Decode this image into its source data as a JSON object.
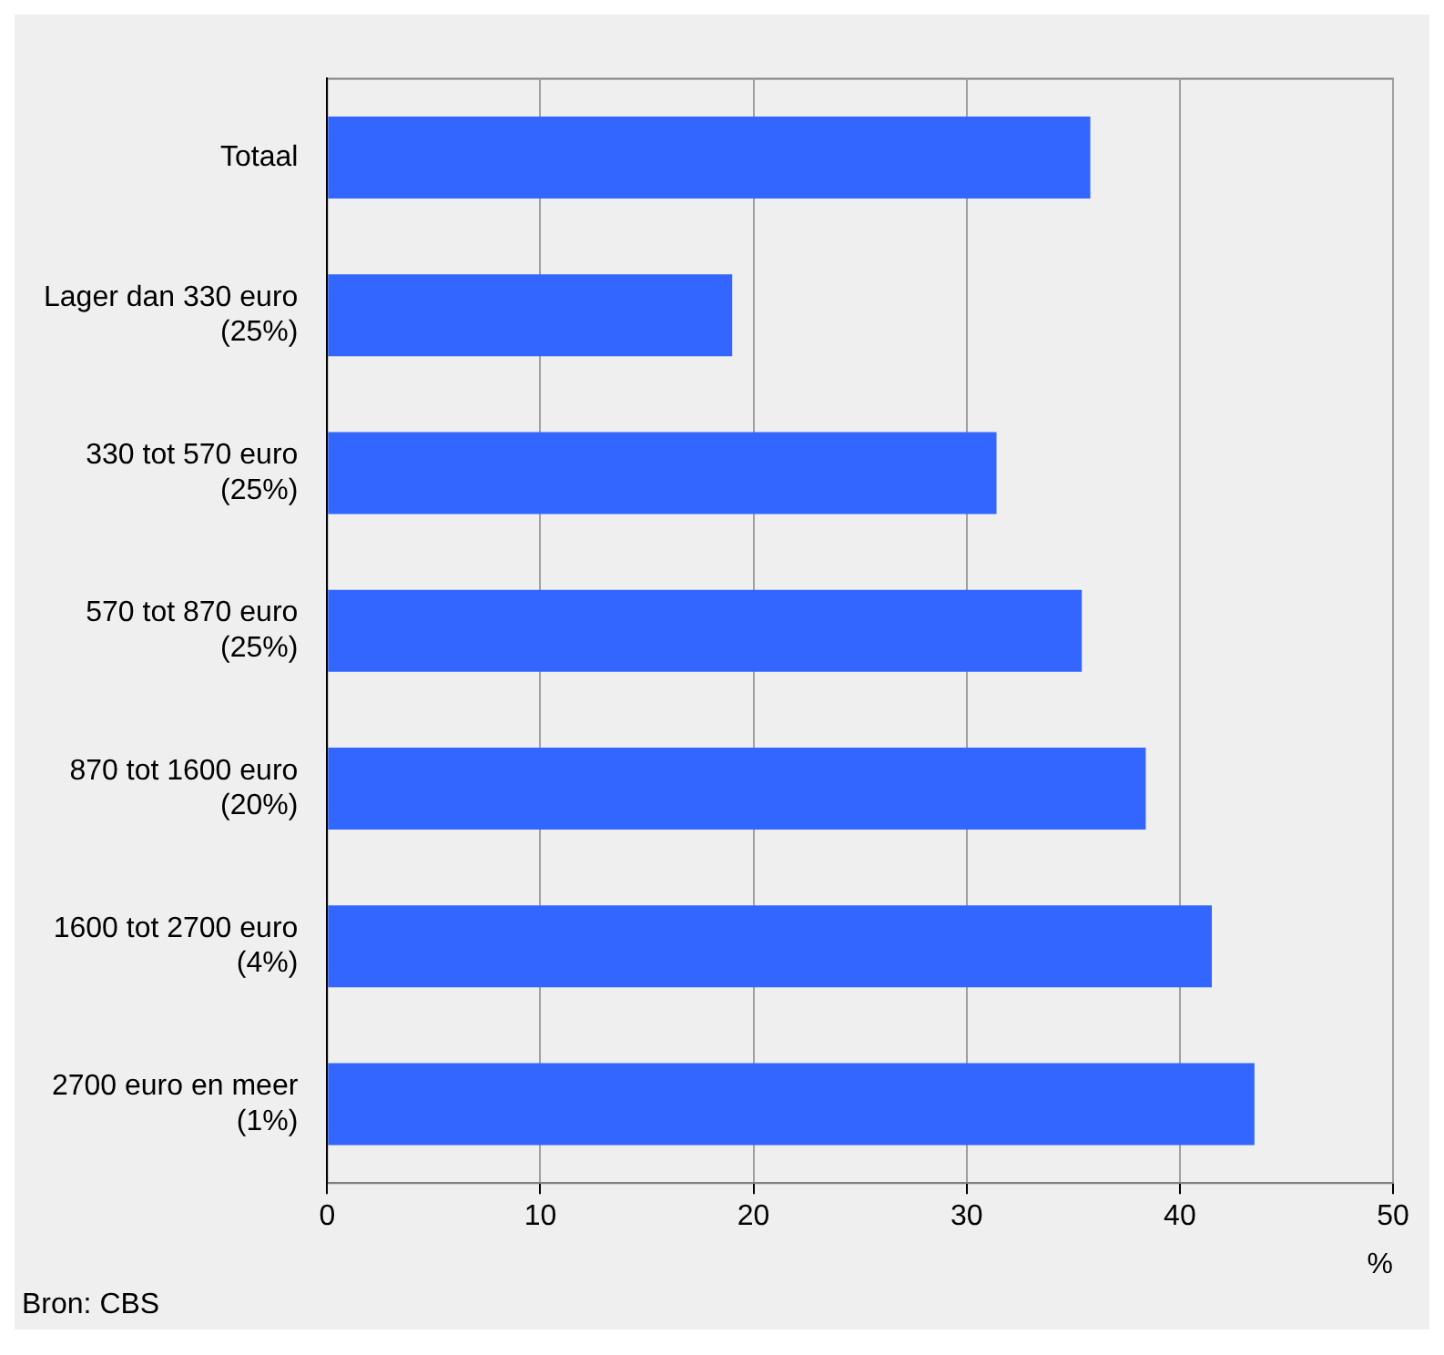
{
  "chart_data": {
    "type": "bar",
    "orientation": "horizontal",
    "categories": [
      "Totaal",
      "Lager dan 330 euro\n(25%)",
      "330 tot 570 euro\n(25%)",
      "570 tot 870 euro\n(25%)",
      "870 tot 1600 euro\n(20%)",
      "1600 tot 2700 euro\n(4%)",
      "2700 euro en meer\n(1%)"
    ],
    "values": [
      35.8,
      19.0,
      31.4,
      35.4,
      38.4,
      41.5,
      43.5
    ],
    "color": "#3366ff",
    "xlim": [
      0,
      50
    ],
    "xticks": [
      0,
      10,
      20,
      30,
      40,
      50
    ],
    "xlabel": "%",
    "grid": "x",
    "legend": false,
    "annotations": [
      "Bron: CBS"
    ]
  }
}
